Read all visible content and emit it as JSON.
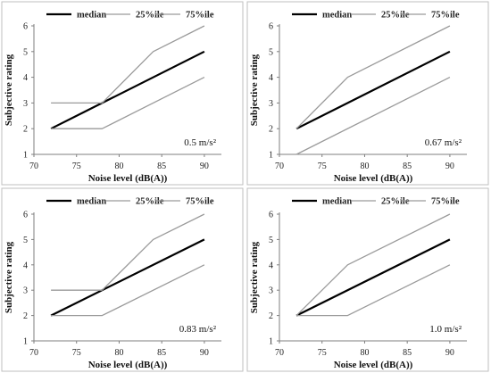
{
  "colors": {
    "median": "#000000",
    "quartile": "#9a9a9a",
    "axis": "#7f7f7f",
    "frame": "#bfbfbf",
    "text": "#222222"
  },
  "chart_data": [
    {
      "type": "line",
      "annotation": "0.5 m/s²",
      "xlabel": "Noise level (dB(A))",
      "ylabel": "Subjective rating",
      "xlim": [
        70,
        92
      ],
      "ylim": [
        1,
        6
      ],
      "xticks": [
        70,
        75,
        80,
        85,
        90
      ],
      "yticks": [
        1,
        2,
        3,
        4,
        5,
        6
      ],
      "legend_position": "top",
      "series": [
        {
          "name": "median",
          "points": [
            [
              72,
              2
            ],
            [
              90,
              5
            ]
          ]
        },
        {
          "name": "25%ile",
          "points": [
            [
              72,
              2
            ],
            [
              78,
              2
            ],
            [
              90,
              4
            ]
          ]
        },
        {
          "name": "75%ile",
          "points": [
            [
              72,
              3
            ],
            [
              78,
              3
            ],
            [
              84,
              5
            ],
            [
              90,
              6
            ]
          ]
        }
      ]
    },
    {
      "type": "line",
      "annotation": "0.67 m/s²",
      "xlabel": "Noise level (dB(A))",
      "ylabel": "Subjective rating",
      "xlim": [
        70,
        92
      ],
      "ylim": [
        1,
        6
      ],
      "xticks": [
        70,
        75,
        80,
        85,
        90
      ],
      "yticks": [
        1,
        2,
        3,
        4,
        5,
        6
      ],
      "legend_position": "top",
      "series": [
        {
          "name": "median",
          "points": [
            [
              72,
              2
            ],
            [
              90,
              5
            ]
          ]
        },
        {
          "name": "25%ile",
          "points": [
            [
              72,
              1
            ],
            [
              90,
              4
            ]
          ]
        },
        {
          "name": "75%ile",
          "points": [
            [
              72,
              2
            ],
            [
              78,
              4
            ],
            [
              90,
              6
            ]
          ]
        }
      ]
    },
    {
      "type": "line",
      "annotation": "0.83 m/s²",
      "xlabel": "Noise level (dB(A))",
      "ylabel": "Subjective rating",
      "xlim": [
        70,
        92
      ],
      "ylim": [
        1,
        6
      ],
      "xticks": [
        70,
        75,
        80,
        85,
        90
      ],
      "yticks": [
        1,
        2,
        3,
        4,
        5,
        6
      ],
      "legend_position": "top",
      "series": [
        {
          "name": "median",
          "points": [
            [
              72,
              2
            ],
            [
              90,
              5
            ]
          ]
        },
        {
          "name": "25%ile",
          "points": [
            [
              72,
              2
            ],
            [
              78,
              2
            ],
            [
              90,
              4
            ]
          ]
        },
        {
          "name": "75%ile",
          "points": [
            [
              72,
              3
            ],
            [
              78,
              3
            ],
            [
              84,
              5
            ],
            [
              90,
              6
            ]
          ]
        }
      ]
    },
    {
      "type": "line",
      "annotation": "1.0 m/s²",
      "xlabel": "Noise level (dB(A))",
      "ylabel": "Subjective rating",
      "xlim": [
        70,
        92
      ],
      "ylim": [
        1,
        6
      ],
      "xticks": [
        70,
        75,
        80,
        85,
        90
      ],
      "yticks": [
        1,
        2,
        3,
        4,
        5,
        6
      ],
      "legend_position": "top",
      "series": [
        {
          "name": "median",
          "points": [
            [
              72,
              2
            ],
            [
              90,
              5
            ]
          ]
        },
        {
          "name": "25%ile",
          "points": [
            [
              72,
              2
            ],
            [
              78,
              2
            ],
            [
              90,
              4
            ]
          ]
        },
        {
          "name": "75%ile",
          "points": [
            [
              72,
              2
            ],
            [
              78,
              4
            ],
            [
              90,
              6
            ]
          ]
        }
      ]
    }
  ]
}
